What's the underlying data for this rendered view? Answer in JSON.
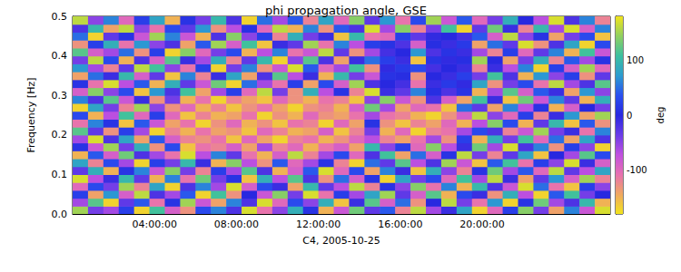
{
  "chart_data": {
    "type": "heatmap",
    "title": "phi propagation angle, GSE",
    "x_label": "C4, 2005-10-25",
    "y_label": "Frequency [Hz]",
    "xlim": [
      0,
      26.25
    ],
    "xticks": [
      {
        "value": 4,
        "label": "04:00:00"
      },
      {
        "value": 8,
        "label": "08:00:00"
      },
      {
        "value": 12,
        "label": "12:00:00"
      },
      {
        "value": 16,
        "label": "16:00:00"
      },
      {
        "value": 20,
        "label": "20:00:00"
      }
    ],
    "ylim": [
      0,
      0.5
    ],
    "yticks": [
      {
        "value": 0,
        "label": "0.0"
      },
      0.1,
      0.2,
      0.3,
      0.4,
      0.5
    ],
    "x_edges": [
      0,
      0.75,
      1.5,
      2.25,
      3,
      3.75,
      4.5,
      5.25,
      6,
      6.75,
      7.5,
      8.25,
      9,
      9.75,
      10.5,
      11.25,
      12,
      12.75,
      13.5,
      14.25,
      15,
      15.75,
      16.5,
      17.25,
      18,
      18.75,
      19.5,
      20.25,
      21,
      21.75,
      22.5,
      23.25,
      24,
      24.75,
      25.5,
      26.25
    ],
    "y_edges": [
      0,
      0.02,
      0.04,
      0.06,
      0.08,
      0.1,
      0.12,
      0.14,
      0.16,
      0.18,
      0.2,
      0.22,
      0.24,
      0.26,
      0.28,
      0.3,
      0.32,
      0.34,
      0.36,
      0.38,
      0.4,
      0.42,
      0.44,
      0.46,
      0.48,
      0.5
    ],
    "cells": [
      [
        150,
        -40,
        -60,
        20,
        -170,
        110,
        -90,
        -130,
        30,
        60,
        -20,
        170,
        -110,
        -50,
        90,
        10,
        -150,
        -80,
        130,
        -30,
        40,
        -120,
        160,
        -60,
        -10,
        80,
        -170,
        -100,
        20,
        140,
        -40,
        -140,
        60,
        -80,
        170
      ],
      [
        -60,
        120,
        -170,
        -30,
        40,
        -110,
        10,
        150,
        -80,
        -140,
        60,
        -20,
        170,
        -100,
        30,
        -50,
        90,
        -160,
        -10,
        120,
        -90,
        50,
        -130,
        0,
        160,
        -40,
        -110,
        70,
        -170,
        10,
        130,
        -60,
        -20,
        100,
        -150
      ],
      [
        20,
        -140,
        70,
        -90,
        160,
        -20,
        -60,
        40,
        -170,
        110,
        -130,
        0,
        -80,
        140,
        -40,
        170,
        -110,
        20,
        -60,
        80,
        150,
        -30,
        -90,
        120,
        -150,
        30,
        -10,
        -130,
        90,
        -70,
        -170,
        40,
        110,
        -40,
        0
      ],
      [
        -100,
        30,
        -40,
        150,
        -120,
        80,
        -170,
        -20,
        60,
        -60,
        170,
        -90,
        30,
        -10,
        -140,
        100,
        -30,
        -70,
        160,
        -120,
        10,
        -50,
        140,
        -110,
        60,
        -150,
        100,
        -20,
        -80,
        170,
        50,
        -110,
        -160,
        20,
        -50
      ],
      [
        170,
        -70,
        -10,
        100,
        -30,
        -150,
        60,
        -110,
        130,
        -40,
        10,
        -160,
        90,
        -70,
        120,
        -20,
        -130,
        50,
        -90,
        10,
        -170,
        80,
        -40,
        30,
        -100,
        110,
        -60,
        160,
        -10,
        -140,
        -30,
        70,
        -90,
        150,
        -120
      ],
      [
        -30,
        90,
        -150,
        10,
        60,
        -80,
        140,
        -40,
        -120,
        20,
        -60,
        120,
        -20,
        -150,
        -90,
        40,
        170,
        -100,
        30,
        -140,
        60,
        -10,
        -160,
        90,
        -50,
        -120,
        10,
        130,
        -60,
        40,
        -100,
        160,
        -30,
        -70,
        80
      ],
      [
        80,
        -120,
        30,
        -60,
        -170,
        20,
        -40,
        100,
        -10,
        -150,
        140,
        -70,
        -130,
        40,
        -100,
        -60,
        10,
        -120,
        -170,
        50,
        -30,
        120,
        -70,
        -20,
        150,
        -80,
        -160,
        40,
        110,
        -110,
        20,
        -50,
        170,
        -10,
        -90
      ],
      [
        -150,
        40,
        -90,
        130,
        -20,
        -60,
        -110,
        170,
        -70,
        60,
        -30,
        -110,
        -150,
        -90,
        160,
        -120,
        -60,
        30,
        -100,
        -20,
        110,
        -140,
        50,
        -90,
        10,
        160,
        -40,
        -120,
        -30,
        80,
        -160,
        0,
        -60,
        120,
        30
      ],
      [
        10,
        -80,
        150,
        -40,
        90,
        -130,
        30,
        -160,
        -110,
        -120,
        -90,
        -140,
        -60,
        -120,
        -100,
        -150,
        -110,
        -90,
        -140,
        100,
        -50,
        20,
        -100,
        140,
        -70,
        -10,
        130,
        -60,
        170,
        -20,
        60,
        -130,
        20,
        -50,
        -170
      ],
      [
        -60,
        170,
        -20,
        80,
        -140,
        40,
        -90,
        -120,
        -130,
        -110,
        -160,
        -100,
        -140,
        -170,
        -120,
        -110,
        -150,
        -130,
        -100,
        -70,
        -120,
        -140,
        -110,
        -60,
        -130,
        20,
        -150,
        90,
        -40,
        110,
        -100,
        50,
        -140,
        80,
        -20
      ],
      [
        120,
        -30,
        -130,
        20,
        -60,
        -170,
        -120,
        -150,
        -110,
        -140,
        -130,
        -160,
        -100,
        -120,
        -150,
        -140,
        -90,
        -160,
        -120,
        -40,
        -150,
        -100,
        -170,
        -120,
        -110,
        -60,
        30,
        -20,
        -120,
        -80,
        150,
        -40,
        -10,
        -110,
        60
      ],
      [
        -110,
        60,
        10,
        -160,
        40,
        -80,
        -140,
        -110,
        -170,
        -130,
        -100,
        -150,
        -130,
        -160,
        -110,
        -120,
        -170,
        -100,
        -140,
        10,
        -130,
        -160,
        -120,
        -140,
        -100,
        -150,
        -70,
        140,
        30,
        -150,
        -30,
        100,
        -160,
        40,
        -130
      ],
      [
        30,
        -150,
        -70,
        110,
        -100,
        20,
        -100,
        -160,
        -120,
        -150,
        -140,
        -110,
        -170,
        -130,
        -150,
        -100,
        -130,
        -140,
        -110,
        -60,
        -110,
        -120,
        -150,
        -170,
        -130,
        -90,
        160,
        -50,
        -100,
        20,
        -120,
        -10,
        70,
        -140,
        150
      ],
      [
        -170,
        80,
        -40,
        -120,
        150,
        -50,
        -130,
        -100,
        -150,
        -120,
        -160,
        -130,
        -110,
        -140,
        -170,
        -130,
        -120,
        -150,
        -90,
        130,
        -60,
        -140,
        -100,
        -110,
        -160,
        50,
        -30,
        -140,
        60,
        -70,
        10,
        -150,
        -90,
        0,
        -40
      ],
      [
        60,
        -20,
        120,
        -80,
        -10,
        -130,
        -40,
        -150,
        -110,
        -170,
        -120,
        -140,
        -160,
        -100,
        -130,
        -150,
        -110,
        -120,
        -160,
        -50,
        140,
        -80,
        -130,
        -20,
        -90,
        -140,
        110,
        -10,
        -160,
        130,
        -80,
        60,
        -30,
        -150,
        90
      ],
      [
        -90,
        140,
        -50,
        30,
        -160,
        70,
        -20,
        110,
        -140,
        -60,
        20,
        -100,
        160,
        -40,
        -130,
        90,
        -70,
        10,
        -120,
        170,
        -10,
        -30,
        60,
        5,
        -20,
        10,
        -150,
        -60,
        120,
        -90,
        40,
        -10,
        -140,
        70,
        -50
      ],
      [
        10,
        -110,
        170,
        -70,
        40,
        -150,
        90,
        -30,
        -80,
        130,
        -170,
        50,
        -60,
        -110,
        20,
        -140,
        30,
        -90,
        150,
        -20,
        0,
        -15,
        -110,
        -10,
        15,
        -5,
        80,
        -130,
        -40,
        30,
        -110,
        160,
        -60,
        -20,
        120
      ],
      [
        -140,
        50,
        -10,
        100,
        -90,
        -30,
        -160,
        60,
        -120,
        -10,
        80,
        -140,
        -20,
        120,
        -70,
        -10,
        -150,
        100,
        -40,
        -80,
        10,
        5,
        -130,
        0,
        -10,
        20,
        -40,
        110,
        -20,
        -150,
        70,
        -50,
        20,
        -130,
        -30
      ],
      [
        70,
        -60,
        -120,
        -30,
        160,
        110,
        -50,
        -110,
        20,
        -170,
        -40,
        60,
        -130,
        -80,
        170,
        40,
        -100,
        -60,
        110,
        -130,
        -5,
        15,
        30,
        -15,
        0,
        -10,
        -120,
        -10,
        -70,
        60,
        -170,
        20,
        -90,
        150,
        -100
      ],
      [
        -40,
        160,
        30,
        -150,
        -20,
        -90,
        120,
        -10,
        -60,
        90,
        -120,
        -30,
        100,
        -170,
        -50,
        120,
        -20,
        -140,
        -10,
        50,
        20,
        -10,
        -160,
        10,
        -5,
        5,
        150,
        0,
        -140,
        -40,
        90,
        -120,
        40,
        -60,
        10
      ],
      [
        120,
        -90,
        -60,
        50,
        -130,
        20,
        -170,
        140,
        -100,
        -40,
        30,
        -150,
        -70,
        60,
        -110,
        -80,
        160,
        -30,
        -130,
        -60,
        -15,
        0,
        70,
        -20,
        10,
        -10,
        -60,
        -120,
        20,
        -100,
        -30,
        60,
        -150,
        110,
        -80
      ],
      [
        -130,
        20,
        90,
        -110,
        70,
        -50,
        -20,
        -140,
        40,
        150,
        -90,
        110,
        -160,
        -10,
        -30,
        150,
        -110,
        60,
        -70,
        20,
        10,
        -20,
        -90,
        5,
        -10,
        15,
        -140,
        50,
        -30,
        170,
        -130,
        -20,
        80,
        -170,
        30
      ],
      [
        50,
        -170,
        -30,
        10,
        -80,
        150,
        60,
        -80,
        -150,
        -20,
        140,
        -50,
        20,
        -120,
        90,
        -40,
        -10,
        -160,
        100,
        -110,
        -100,
        20,
        -30,
        -5,
        0,
        -15,
        40,
        -90,
        160,
        -50,
        10,
        -140,
        -40,
        30,
        -160
      ],
      [
        -20,
        100,
        -140,
        160,
        -50,
        -110,
        30,
        -30,
        70,
        -130,
        -70,
        10,
        -100,
        160,
        -150,
        60,
        -130,
        40,
        -20,
        170,
        -60,
        140,
        -120,
        -40,
        110,
        -170,
        -30,
        130,
        -10,
        -120,
        100,
        -60,
        170,
        -90,
        60
      ],
      [
        160,
        -50,
        60,
        -100,
        20,
        80,
        -150,
        10,
        -40,
        100,
        -20,
        -170,
        50,
        -60,
        40,
        -120,
        80,
        -100,
        140,
        -30,
        70,
        -110,
        30,
        150,
        -80,
        40,
        -100,
        -40,
        90,
        0,
        -70,
        170,
        -20,
        60,
        -120
      ]
    ],
    "colorbar": {
      "label": "deg",
      "range": [
        -180,
        180
      ],
      "ticks": [
        -100,
        0,
        100
      ]
    }
  }
}
